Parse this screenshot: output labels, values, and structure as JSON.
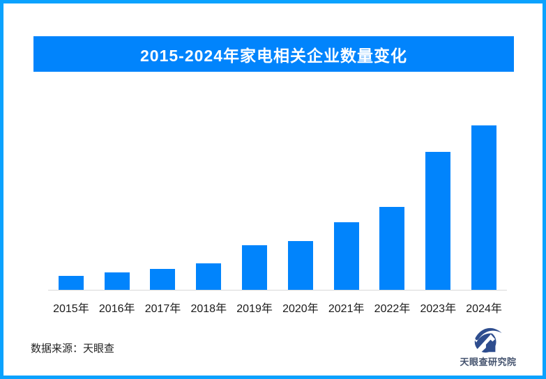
{
  "page": {
    "border_color": "#0AA2FE",
    "background": "#FFFFFF"
  },
  "banner": {
    "title": "2015-2024年家电相关企业数量变化",
    "bg_color": "#0184FC",
    "text_color": "#FFFFFF"
  },
  "chart_data": {
    "type": "bar",
    "title": "2015-2024年家电相关企业数量变化",
    "categories": [
      "2015年",
      "2016年",
      "2017年",
      "2018年",
      "2019年",
      "2020年",
      "2021年",
      "2022年",
      "2023年",
      "2024年"
    ],
    "values": [
      20,
      25,
      30,
      38,
      64,
      70,
      97,
      119,
      198,
      236
    ],
    "values_note": "no numeric y-axis or data labels shown in image; values are relative bar heights (px) read from the chart",
    "bar_color": "#0184FC",
    "xlabel": "",
    "ylabel": "",
    "ylim": [
      0,
      240
    ],
    "grid": false,
    "legend": false,
    "y_axis_visible": false,
    "x_axis_line_color": "#D9D9D9"
  },
  "footer": {
    "source": "数据来源：天眼查"
  },
  "logo": {
    "icon": "tianyancha-eye-logo-icon",
    "icon_color": "#2E4D8E",
    "text": "天眼查研究院",
    "text_color": "#44536E"
  }
}
